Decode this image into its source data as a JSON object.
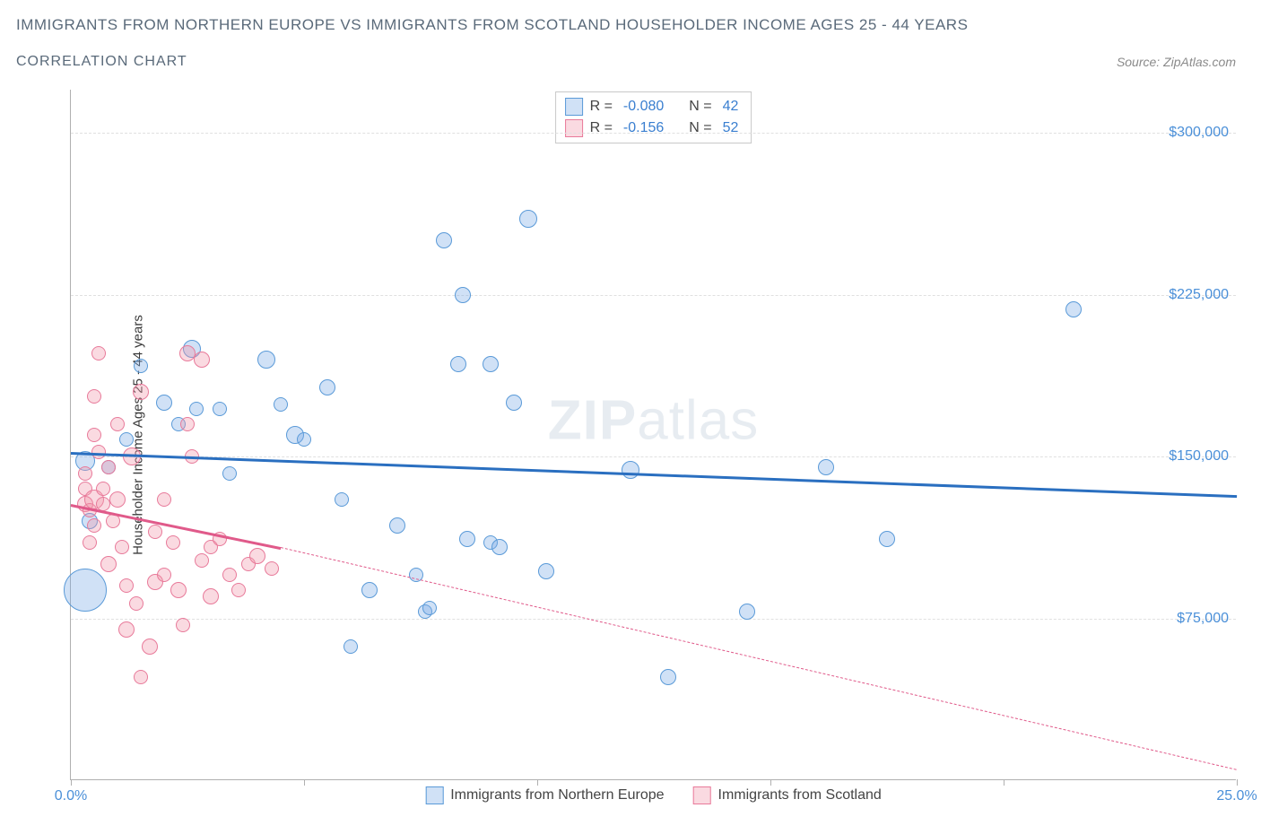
{
  "title": "IMMIGRANTS FROM NORTHERN EUROPE VS IMMIGRANTS FROM SCOTLAND HOUSEHOLDER INCOME AGES 25 - 44 YEARS",
  "subtitle": "CORRELATION CHART",
  "source_label": "Source: ZipAtlas.com",
  "y_axis_label": "Householder Income Ages 25 - 44 years",
  "watermark_bold": "ZIP",
  "watermark_light": "atlas",
  "chart": {
    "type": "scatter",
    "background_color": "#ffffff",
    "grid_color": "#e0e0e0",
    "axis_color": "#b0b0b0",
    "xlim": [
      0,
      25
    ],
    "ylim": [
      0,
      320000
    ],
    "y_ticks": [
      75000,
      150000,
      225000,
      300000
    ],
    "y_tick_labels": [
      "$75,000",
      "$150,000",
      "$225,000",
      "$300,000"
    ],
    "x_tick_positions": [
      0,
      5,
      10,
      15,
      20,
      25
    ],
    "x_tick_labels": {
      "0": "0.0%",
      "25": "25.0%"
    },
    "series": [
      {
        "name": "Immigrants from Northern Europe",
        "fill_color": "rgba(120,170,230,0.35)",
        "stroke_color": "#5a9ad8",
        "trend_color": "#2a6fc0",
        "r_value": "-0.080",
        "n_value": "42",
        "trend_start": {
          "x": 0,
          "y": 152000
        },
        "trend_end": {
          "x": 25,
          "y": 132000
        },
        "points": [
          {
            "x": 0.3,
            "y": 88000,
            "r": 24
          },
          {
            "x": 0.3,
            "y": 148000,
            "r": 11
          },
          {
            "x": 0.4,
            "y": 120000,
            "r": 9
          },
          {
            "x": 0.8,
            "y": 145000,
            "r": 8
          },
          {
            "x": 1.2,
            "y": 158000,
            "r": 8
          },
          {
            "x": 1.5,
            "y": 192000,
            "r": 8
          },
          {
            "x": 2.0,
            "y": 175000,
            "r": 9
          },
          {
            "x": 2.3,
            "y": 165000,
            "r": 8
          },
          {
            "x": 2.6,
            "y": 200000,
            "r": 10
          },
          {
            "x": 2.7,
            "y": 172000,
            "r": 8
          },
          {
            "x": 3.2,
            "y": 172000,
            "r": 8
          },
          {
            "x": 3.4,
            "y": 142000,
            "r": 8
          },
          {
            "x": 4.2,
            "y": 195000,
            "r": 10
          },
          {
            "x": 4.5,
            "y": 174000,
            "r": 8
          },
          {
            "x": 4.8,
            "y": 160000,
            "r": 10
          },
          {
            "x": 5.0,
            "y": 158000,
            "r": 8
          },
          {
            "x": 5.5,
            "y": 182000,
            "r": 9
          },
          {
            "x": 5.8,
            "y": 130000,
            "r": 8
          },
          {
            "x": 6.0,
            "y": 62000,
            "r": 8
          },
          {
            "x": 6.4,
            "y": 88000,
            "r": 9
          },
          {
            "x": 7.0,
            "y": 118000,
            "r": 9
          },
          {
            "x": 7.4,
            "y": 95000,
            "r": 8
          },
          {
            "x": 7.6,
            "y": 78000,
            "r": 8
          },
          {
            "x": 7.7,
            "y": 80000,
            "r": 8
          },
          {
            "x": 8.0,
            "y": 250000,
            "r": 9
          },
          {
            "x": 8.3,
            "y": 193000,
            "r": 9
          },
          {
            "x": 8.4,
            "y": 225000,
            "r": 9
          },
          {
            "x": 8.5,
            "y": 112000,
            "r": 9
          },
          {
            "x": 9.0,
            "y": 193000,
            "r": 9
          },
          {
            "x": 9.0,
            "y": 110000,
            "r": 8
          },
          {
            "x": 9.2,
            "y": 108000,
            "r": 9
          },
          {
            "x": 9.5,
            "y": 175000,
            "r": 9
          },
          {
            "x": 9.8,
            "y": 260000,
            "r": 10
          },
          {
            "x": 10.2,
            "y": 97000,
            "r": 9
          },
          {
            "x": 12.0,
            "y": 144000,
            "r": 10
          },
          {
            "x": 12.8,
            "y": 48000,
            "r": 9
          },
          {
            "x": 14.5,
            "y": 78000,
            "r": 9
          },
          {
            "x": 16.2,
            "y": 145000,
            "r": 9
          },
          {
            "x": 17.5,
            "y": 112000,
            "r": 9
          },
          {
            "x": 21.5,
            "y": 218000,
            "r": 9
          }
        ]
      },
      {
        "name": "Immigrants from Scotland",
        "fill_color": "rgba(240,150,170,0.35)",
        "stroke_color": "#e87a9a",
        "trend_color": "#e05a8a",
        "r_value": "-0.156",
        "n_value": "52",
        "trend_start": {
          "x": 0,
          "y": 128000
        },
        "trend_end_solid": {
          "x": 4.5,
          "y": 108000
        },
        "trend_end_dash": {
          "x": 25,
          "y": 5000
        },
        "points": [
          {
            "x": 0.3,
            "y": 128000,
            "r": 9
          },
          {
            "x": 0.3,
            "y": 135000,
            "r": 8
          },
          {
            "x": 0.3,
            "y": 142000,
            "r": 8
          },
          {
            "x": 0.4,
            "y": 110000,
            "r": 8
          },
          {
            "x": 0.4,
            "y": 125000,
            "r": 8
          },
          {
            "x": 0.5,
            "y": 130000,
            "r": 11
          },
          {
            "x": 0.5,
            "y": 160000,
            "r": 8
          },
          {
            "x": 0.5,
            "y": 118000,
            "r": 8
          },
          {
            "x": 0.5,
            "y": 178000,
            "r": 8
          },
          {
            "x": 0.6,
            "y": 198000,
            "r": 8
          },
          {
            "x": 0.6,
            "y": 152000,
            "r": 8
          },
          {
            "x": 0.7,
            "y": 128000,
            "r": 8
          },
          {
            "x": 0.7,
            "y": 135000,
            "r": 8
          },
          {
            "x": 0.8,
            "y": 100000,
            "r": 9
          },
          {
            "x": 0.8,
            "y": 145000,
            "r": 8
          },
          {
            "x": 0.9,
            "y": 120000,
            "r": 8
          },
          {
            "x": 1.0,
            "y": 130000,
            "r": 9
          },
          {
            "x": 1.0,
            "y": 165000,
            "r": 8
          },
          {
            "x": 1.1,
            "y": 108000,
            "r": 8
          },
          {
            "x": 1.2,
            "y": 70000,
            "r": 9
          },
          {
            "x": 1.2,
            "y": 90000,
            "r": 8
          },
          {
            "x": 1.3,
            "y": 150000,
            "r": 10
          },
          {
            "x": 1.4,
            "y": 82000,
            "r": 8
          },
          {
            "x": 1.5,
            "y": 48000,
            "r": 8
          },
          {
            "x": 1.5,
            "y": 180000,
            "r": 9
          },
          {
            "x": 1.7,
            "y": 62000,
            "r": 9
          },
          {
            "x": 1.8,
            "y": 115000,
            "r": 8
          },
          {
            "x": 1.8,
            "y": 92000,
            "r": 9
          },
          {
            "x": 2.0,
            "y": 95000,
            "r": 8
          },
          {
            "x": 2.0,
            "y": 130000,
            "r": 8
          },
          {
            "x": 2.2,
            "y": 110000,
            "r": 8
          },
          {
            "x": 2.3,
            "y": 88000,
            "r": 9
          },
          {
            "x": 2.4,
            "y": 72000,
            "r": 8
          },
          {
            "x": 2.5,
            "y": 198000,
            "r": 9
          },
          {
            "x": 2.5,
            "y": 165000,
            "r": 8
          },
          {
            "x": 2.6,
            "y": 150000,
            "r": 8
          },
          {
            "x": 2.8,
            "y": 102000,
            "r": 8
          },
          {
            "x": 2.8,
            "y": 195000,
            "r": 9
          },
          {
            "x": 3.0,
            "y": 85000,
            "r": 9
          },
          {
            "x": 3.0,
            "y": 108000,
            "r": 8
          },
          {
            "x": 3.2,
            "y": 112000,
            "r": 8
          },
          {
            "x": 3.4,
            "y": 95000,
            "r": 8
          },
          {
            "x": 3.6,
            "y": 88000,
            "r": 8
          },
          {
            "x": 3.8,
            "y": 100000,
            "r": 8
          },
          {
            "x": 4.0,
            "y": 104000,
            "r": 9
          },
          {
            "x": 4.3,
            "y": 98000,
            "r": 8
          }
        ]
      }
    ]
  },
  "stats_labels": {
    "r": "R =",
    "n": "N ="
  },
  "bottom_legend": [
    "Immigrants from Northern Europe",
    "Immigrants from Scotland"
  ]
}
